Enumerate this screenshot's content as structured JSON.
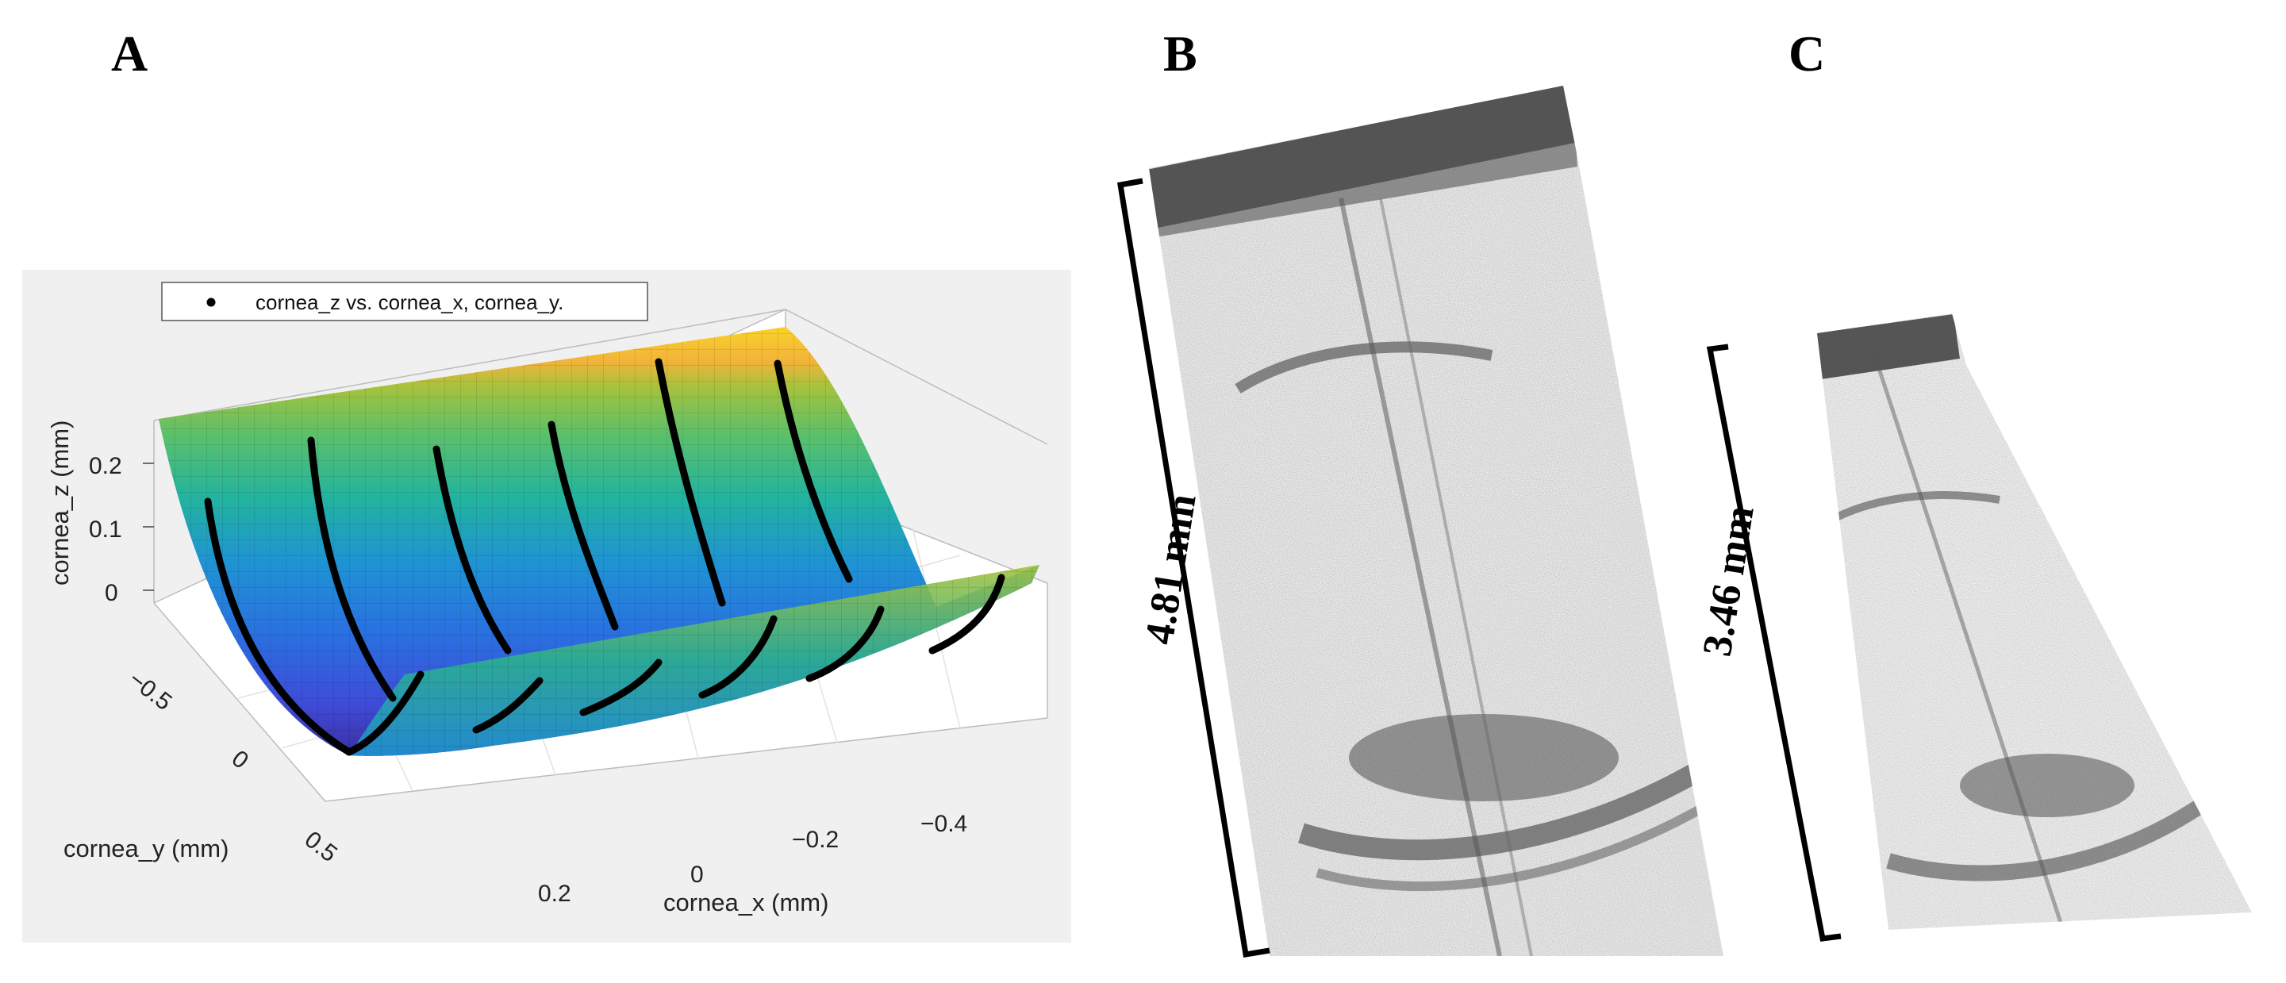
{
  "panels": {
    "a": {
      "letter": "A"
    },
    "b": {
      "letter": "B",
      "scale_label": "4.81 mm"
    },
    "c": {
      "letter": "C",
      "scale_label": "3.46 mm"
    }
  },
  "chart_data": {
    "type": "surface3d",
    "legend": "cornea_z vs. cornea_x, cornea_y.",
    "xlabel": "cornea_x (mm)",
    "ylabel": "cornea_y (mm)",
    "zlabel": "cornea_z (mm)",
    "xticks": [
      "−0.4",
      "−0.2",
      "0",
      "0.2"
    ],
    "yticks": [
      "−0.5",
      "0",
      "0.5"
    ],
    "zticks": [
      "0.2",
      "0.1",
      "0"
    ],
    "grid": true,
    "legend_position": "top-left",
    "colormap": "parula",
    "colors": {
      "background": "#f0f0f0",
      "points": "#000000"
    }
  }
}
